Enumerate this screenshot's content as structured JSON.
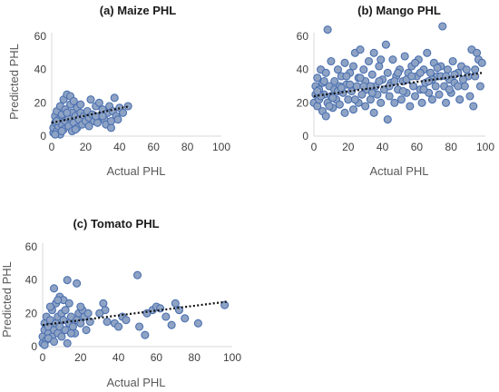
{
  "colors": {
    "marker_fill": "#8ea3c4",
    "marker_stroke": "#4a6fb0",
    "trendline": "#111111",
    "axis": "#d9d9d9",
    "text": "#595959"
  },
  "chart_data": [
    {
      "id": "maize",
      "type": "scatter",
      "title": "(a) Maize PHL",
      "xlabel": "Actual PHL",
      "ylabel": "Predicted PHL",
      "xlim": [
        0,
        100
      ],
      "ylim": [
        0,
        60
      ],
      "xticks": [
        "0",
        "20",
        "40",
        "60",
        "80",
        "100"
      ],
      "yticks": [
        "0",
        "20",
        "40",
        "60"
      ],
      "grid": false,
      "trendline": {
        "style": "dotted",
        "x": [
          0,
          46
        ],
        "y": [
          8,
          18
        ]
      },
      "points": [
        [
          1,
          2
        ],
        [
          1,
          5
        ],
        [
          2,
          8
        ],
        [
          2,
          12
        ],
        [
          3,
          3
        ],
        [
          3,
          15
        ],
        [
          4,
          6
        ],
        [
          4,
          10
        ],
        [
          5,
          1
        ],
        [
          5,
          18
        ],
        [
          6,
          7
        ],
        [
          6,
          13
        ],
        [
          7,
          4
        ],
        [
          7,
          22
        ],
        [
          8,
          9
        ],
        [
          8,
          16
        ],
        [
          9,
          25
        ],
        [
          10,
          6
        ],
        [
          10,
          11
        ],
        [
          11,
          19
        ],
        [
          11,
          24
        ],
        [
          12,
          3
        ],
        [
          12,
          14
        ],
        [
          13,
          8
        ],
        [
          13,
          21
        ],
        [
          14,
          12
        ],
        [
          15,
          5
        ],
        [
          15,
          17
        ],
        [
          16,
          10
        ],
        [
          17,
          14
        ],
        [
          18,
          7
        ],
        [
          19,
          12
        ],
        [
          20,
          9
        ],
        [
          21,
          15
        ],
        [
          22,
          11
        ],
        [
          23,
          22
        ],
        [
          24,
          13
        ],
        [
          25,
          9
        ],
        [
          26,
          18
        ],
        [
          27,
          8
        ],
        [
          28,
          20
        ],
        [
          29,
          12
        ],
        [
          30,
          16
        ],
        [
          31,
          10
        ],
        [
          32,
          7
        ],
        [
          33,
          14
        ],
        [
          34,
          18
        ],
        [
          35,
          5
        ],
        [
          36,
          15
        ],
        [
          37,
          23
        ],
        [
          38,
          12
        ],
        [
          40,
          17
        ],
        [
          42,
          14
        ],
        [
          45,
          18
        ],
        [
          2,
          1
        ],
        [
          3,
          9
        ],
        [
          6,
          3
        ],
        [
          9,
          14
        ],
        [
          14,
          4
        ],
        [
          17,
          19
        ],
        [
          22,
          6
        ],
        [
          26,
          12
        ],
        [
          30,
          12
        ],
        [
          35,
          9
        ],
        [
          39,
          10
        ]
      ]
    },
    {
      "id": "mango",
      "type": "scatter",
      "title": "(b) Mango PHL",
      "xlabel": "Actual PHL",
      "ylabel": "",
      "xlim": [
        0,
        100
      ],
      "ylim": [
        0,
        60
      ],
      "xticks": [
        "0",
        "20",
        "40",
        "60",
        "80",
        "100"
      ],
      "yticks": [
        "0",
        "20",
        "40",
        "60"
      ],
      "grid": false,
      "trendline": {
        "style": "dotted",
        "x": [
          0,
          98
        ],
        "y": [
          24,
          38
        ]
      },
      "points": [
        [
          0,
          20
        ],
        [
          1,
          25
        ],
        [
          1,
          30
        ],
        [
          2,
          18
        ],
        [
          2,
          35
        ],
        [
          3,
          22
        ],
        [
          3,
          28
        ],
        [
          4,
          40
        ],
        [
          5,
          15
        ],
        [
          5,
          32
        ],
        [
          6,
          25
        ],
        [
          7,
          12
        ],
        [
          7,
          38
        ],
        [
          8,
          64
        ],
        [
          8,
          20
        ],
        [
          9,
          30
        ],
        [
          10,
          24
        ],
        [
          10,
          45
        ],
        [
          11,
          17
        ],
        [
          12,
          33
        ],
        [
          12,
          28
        ],
        [
          13,
          22
        ],
        [
          14,
          40
        ],
        [
          15,
          19
        ],
        [
          15,
          30
        ],
        [
          16,
          36
        ],
        [
          17,
          26
        ],
        [
          18,
          14
        ],
        [
          18,
          44
        ],
        [
          19,
          31
        ],
        [
          20,
          22
        ],
        [
          21,
          38
        ],
        [
          22,
          27
        ],
        [
          23,
          16
        ],
        [
          23,
          42
        ],
        [
          24,
          50
        ],
        [
          25,
          30
        ],
        [
          26,
          20
        ],
        [
          26,
          35
        ],
        [
          27,
          52
        ],
        [
          28,
          25
        ],
        [
          29,
          40
        ],
        [
          30,
          18
        ],
        [
          30,
          33
        ],
        [
          31,
          28
        ],
        [
          32,
          45
        ],
        [
          33,
          22
        ],
        [
          34,
          37
        ],
        [
          35,
          14
        ],
        [
          35,
          50
        ],
        [
          36,
          30
        ],
        [
          37,
          25
        ],
        [
          38,
          42
        ],
        [
          39,
          20
        ],
        [
          40,
          34
        ],
        [
          41,
          28
        ],
        [
          42,
          55
        ],
        [
          43,
          10
        ],
        [
          43,
          38
        ],
        [
          44,
          24
        ],
        [
          45,
          32
        ],
        [
          46,
          46
        ],
        [
          47,
          20
        ],
        [
          48,
          36
        ],
        [
          49,
          28
        ],
        [
          50,
          40
        ],
        [
          51,
          22
        ],
        [
          52,
          33
        ],
        [
          53,
          48
        ],
        [
          54,
          26
        ],
        [
          55,
          38
        ],
        [
          56,
          18
        ],
        [
          57,
          42
        ],
        [
          58,
          30
        ],
        [
          59,
          24
        ],
        [
          60,
          36
        ],
        [
          61,
          46
        ],
        [
          62,
          28
        ],
        [
          63,
          20
        ],
        [
          64,
          40
        ],
        [
          65,
          32
        ],
        [
          66,
          50
        ],
        [
          67,
          26
        ],
        [
          68,
          38
        ],
        [
          69,
          22
        ],
        [
          70,
          44
        ],
        [
          71,
          30
        ],
        [
          72,
          36
        ],
        [
          73,
          25
        ],
        [
          74,
          42
        ],
        [
          75,
          66
        ],
        [
          76,
          30
        ],
        [
          77,
          20
        ],
        [
          78,
          40
        ],
        [
          79,
          34
        ],
        [
          80,
          26
        ],
        [
          81,
          45
        ],
        [
          82,
          32
        ],
        [
          84,
          38
        ],
        [
          85,
          22
        ],
        [
          86,
          42
        ],
        [
          88,
          30
        ],
        [
          90,
          36
        ],
        [
          91,
          24
        ],
        [
          92,
          52
        ],
        [
          93,
          18
        ],
        [
          94,
          40
        ],
        [
          95,
          50
        ],
        [
          96,
          46
        ],
        [
          97,
          30
        ],
        [
          98,
          44
        ],
        [
          4,
          24
        ],
        [
          9,
          18
        ],
        [
          14,
          27
        ],
        [
          19,
          36
        ],
        [
          24,
          22
        ],
        [
          29,
          30
        ],
        [
          34,
          26
        ],
        [
          39,
          46
        ],
        [
          44,
          30
        ],
        [
          49,
          38
        ],
        [
          54,
          34
        ],
        [
          59,
          44
        ],
        [
          64,
          28
        ],
        [
          69,
          34
        ],
        [
          74,
          36
        ],
        [
          79,
          28
        ],
        [
          84,
          30
        ],
        [
          89,
          40
        ],
        [
          2,
          27
        ],
        [
          6,
          33
        ],
        [
          11,
          23
        ],
        [
          16,
          29
        ],
        [
          21,
          31
        ],
        [
          27,
          35
        ],
        [
          33,
          30
        ],
        [
          38,
          33
        ],
        [
          47,
          33
        ],
        [
          52,
          27
        ],
        [
          57,
          36
        ],
        [
          62,
          38
        ],
        [
          67,
          33
        ],
        [
          72,
          41
        ],
        [
          77,
          36
        ],
        [
          82,
          37
        ],
        [
          87,
          34
        ],
        [
          94,
          36
        ]
      ]
    },
    {
      "id": "tomato",
      "type": "scatter",
      "title": "(c) Tomato PHL",
      "xlabel": "Actual PHL",
      "ylabel": "Predicted PHL",
      "xlim": [
        0,
        100
      ],
      "ylim": [
        0,
        60
      ],
      "xticks": [
        "0",
        "20",
        "40",
        "60",
        "80",
        "100"
      ],
      "yticks": [
        "0",
        "20",
        "40",
        "60"
      ],
      "grid": false,
      "trendline": {
        "style": "dotted",
        "x": [
          0,
          97
        ],
        "y": [
          13,
          27
        ]
      },
      "points": [
        [
          0,
          2
        ],
        [
          0,
          6
        ],
        [
          1,
          10
        ],
        [
          1,
          14
        ],
        [
          2,
          4
        ],
        [
          2,
          18
        ],
        [
          3,
          8
        ],
        [
          3,
          12
        ],
        [
          4,
          16
        ],
        [
          5,
          6
        ],
        [
          5,
          22
        ],
        [
          6,
          10
        ],
        [
          6,
          35
        ],
        [
          7,
          14
        ],
        [
          7,
          26
        ],
        [
          8,
          8
        ],
        [
          8,
          18
        ],
        [
          9,
          12
        ],
        [
          9,
          30
        ],
        [
          10,
          20
        ],
        [
          10,
          6
        ],
        [
          11,
          16
        ],
        [
          11,
          28
        ],
        [
          12,
          10
        ],
        [
          12,
          22
        ],
        [
          13,
          40
        ],
        [
          13,
          2
        ],
        [
          14,
          14
        ],
        [
          14,
          26
        ],
        [
          15,
          18
        ],
        [
          16,
          12
        ],
        [
          17,
          8
        ],
        [
          18,
          16
        ],
        [
          18,
          38
        ],
        [
          19,
          20
        ],
        [
          20,
          14
        ],
        [
          21,
          22
        ],
        [
          22,
          18
        ],
        [
          23,
          10
        ],
        [
          24,
          20
        ],
        [
          25,
          15
        ],
        [
          32,
          26
        ],
        [
          33,
          22
        ],
        [
          34,
          15
        ],
        [
          38,
          14
        ],
        [
          42,
          18
        ],
        [
          44,
          16
        ],
        [
          50,
          43
        ],
        [
          51,
          12
        ],
        [
          54,
          7
        ],
        [
          55,
          20
        ],
        [
          58,
          22
        ],
        [
          60,
          24
        ],
        [
          62,
          23
        ],
        [
          68,
          13
        ],
        [
          70,
          26
        ],
        [
          72,
          22
        ],
        [
          75,
          17
        ],
        [
          82,
          14
        ],
        [
          96,
          25
        ],
        [
          1,
          1
        ],
        [
          3,
          5
        ],
        [
          4,
          24
        ],
        [
          6,
          3
        ],
        [
          8,
          28
        ],
        [
          15,
          8
        ],
        [
          20,
          24
        ],
        [
          30,
          20
        ],
        [
          40,
          12
        ],
        [
          65,
          18
        ]
      ]
    }
  ]
}
